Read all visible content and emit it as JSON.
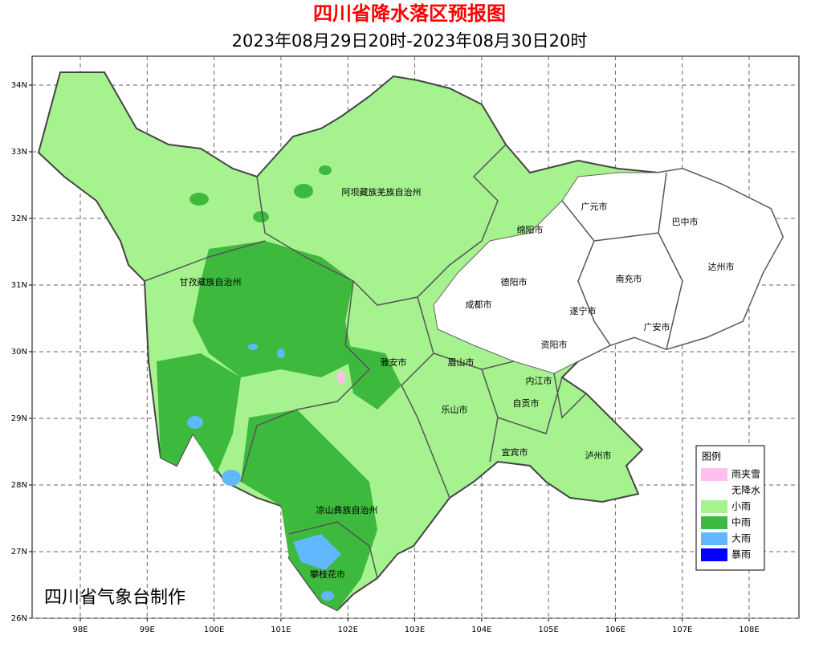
{
  "header": {
    "title": "四川省降水落区预报图",
    "subtitle": "2023年08月29日20时-2023年08月30日20时"
  },
  "axes": {
    "xticks": [
      {
        "value": 98,
        "label": "98E"
      },
      {
        "value": 99,
        "label": "99E"
      },
      {
        "value": 100,
        "label": "100E"
      },
      {
        "value": 101,
        "label": "101E"
      },
      {
        "value": 102,
        "label": "102E"
      },
      {
        "value": 103,
        "label": "103E"
      },
      {
        "value": 104,
        "label": "104E"
      },
      {
        "value": 105,
        "label": "105E"
      },
      {
        "value": 106,
        "label": "106E"
      },
      {
        "value": 107,
        "label": "107E"
      },
      {
        "value": 108,
        "label": "108E"
      }
    ],
    "yticks": [
      {
        "value": 34,
        "label": "34N"
      },
      {
        "value": 33,
        "label": "33N"
      },
      {
        "value": 32,
        "label": "32N"
      },
      {
        "value": 31,
        "label": "31N"
      },
      {
        "value": 30,
        "label": "30N"
      },
      {
        "value": 29,
        "label": "29N"
      },
      {
        "value": 28,
        "label": "28N"
      },
      {
        "value": 27,
        "label": "27N"
      },
      {
        "value": 26,
        "label": "26N"
      }
    ]
  },
  "regions": [
    "阿坝藏族羌族自治州",
    "广元市",
    "巴中市",
    "绵阳市",
    "达州市",
    "甘孜藏族自治州",
    "德阳市",
    "南充市",
    "成都市",
    "遂宁市",
    "广安市",
    "资阳市",
    "雅安市",
    "眉山市",
    "内江市",
    "自贡市",
    "乐山市",
    "宜宾市",
    "泸州市",
    "凉山彝族自治州",
    "攀枝花市"
  ],
  "legend": {
    "title": "图例",
    "items": [
      {
        "label": "雨夹雪",
        "color": "#ffbfef"
      },
      {
        "label": "无降水",
        "color": "#ffffff"
      },
      {
        "label": "小雨",
        "color": "#a6f28f"
      },
      {
        "label": "中雨",
        "color": "#3dba3d"
      },
      {
        "label": "大雨",
        "color": "#61b8ff"
      },
      {
        "label": "暴雨",
        "color": "#0000fe"
      }
    ]
  },
  "credit": "四川省气象台制作"
}
